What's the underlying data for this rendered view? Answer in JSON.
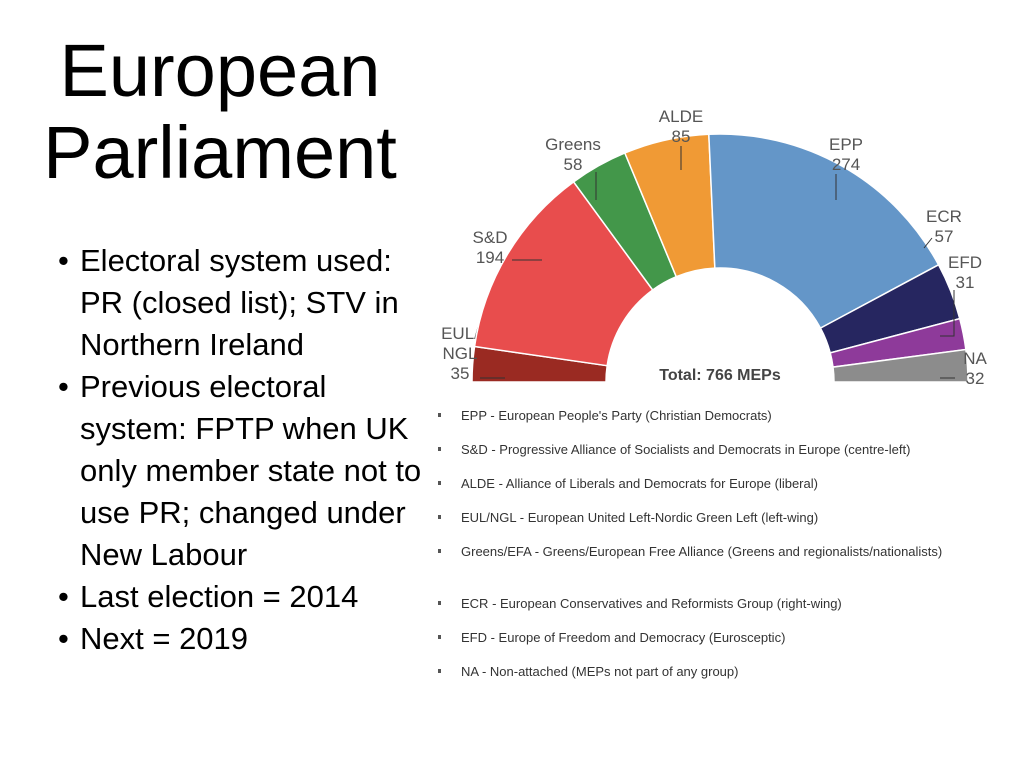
{
  "slide": {
    "title_line1": "European",
    "title_line2": "Parliament",
    "bullets": [
      "Electoral system used: PR (closed list); STV in Northern Ireland",
      "Previous electoral system: FPTP when UK only member state not to use PR; changed under New Labour",
      "Last election = 2014",
      "Next = 2019"
    ]
  },
  "chart_data": {
    "type": "pie",
    "shape": "semicircle",
    "total_label": "Total: 766 MEPs",
    "series": [
      {
        "label_lines": [
          "EUL/",
          "NGL"
        ],
        "value": 35,
        "color": "#9a2a22"
      },
      {
        "label_lines": [
          "S&D"
        ],
        "value": 194,
        "color": "#e84d4d"
      },
      {
        "label_lines": [
          "Greens"
        ],
        "value": 58,
        "color": "#43974a"
      },
      {
        "label_lines": [
          "ALDE"
        ],
        "value": 85,
        "color": "#f09a35"
      },
      {
        "label_lines": [
          "EPP"
        ],
        "value": 274,
        "color": "#6496c8"
      },
      {
        "label_lines": [
          "ECR"
        ],
        "value": 57,
        "color": "#262660"
      },
      {
        "label_lines": [
          "EFD"
        ],
        "value": 31,
        "color": "#8e3a9a"
      },
      {
        "label_lines": [
          "NA"
        ],
        "value": 32,
        "color": "#8c8c8c"
      }
    ]
  },
  "legend": [
    {
      "abbr": "EPP",
      "text": " - European People's Party (Christian Democrats)"
    },
    {
      "abbr": "S&D",
      "text": " - Progressive Alliance of Socialists and Democrats in Europe (centre-left)"
    },
    {
      "abbr": "ALDE",
      "text": " - Alliance of Liberals and Democrats for Europe (liberal)"
    },
    {
      "abbr": "EUL/NGL",
      "text": " - European United Left-Nordic Green Left (left-wing)"
    },
    {
      "abbr": "Greens/EFA",
      "text": " - Greens/European Free Alliance (Greens and regionalists/nationalists)"
    },
    {
      "abbr": "ECR",
      "text": " - European Conservatives and Reformists Group (right-wing)"
    },
    {
      "abbr": "EFD",
      "text": " - Europe of Freedom and Democracy (Eurosceptic)"
    },
    {
      "abbr": "NA",
      "text": " - Non-attached (MEPs not part of any group)"
    }
  ]
}
